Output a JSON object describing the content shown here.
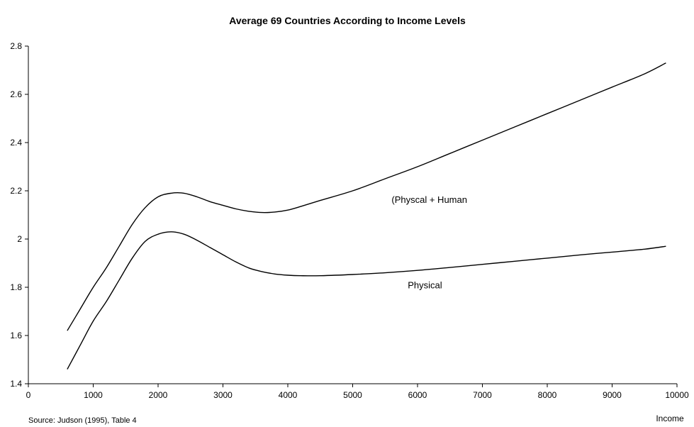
{
  "chart_data": {
    "type": "line",
    "title": "Average 69 Countries According to Income Levels",
    "xlabel": "Income",
    "ylabel": "",
    "xlim": [
      0,
      10000
    ],
    "ylim": [
      1.4,
      2.8
    ],
    "grid": false,
    "x_ticks": [
      "0",
      "1000",
      "2000",
      "3000",
      "4000",
      "5000",
      "6000",
      "7000",
      "8000",
      "9000",
      "10000"
    ],
    "y_ticks": [
      "1.4",
      "1.6",
      "1.8",
      "2",
      "2.2",
      "2.4",
      "2.6",
      "2.8"
    ],
    "series": [
      {
        "name": "(Physcal + Human",
        "color": "#000000",
        "x": [
          600,
          800,
          1000,
          1200,
          1400,
          1600,
          1800,
          2000,
          2200,
          2400,
          2600,
          2800,
          3000,
          3200,
          3400,
          3600,
          3800,
          4000,
          4200,
          4500,
          5000,
          5500,
          6000,
          6500,
          7000,
          7500,
          8000,
          8500,
          9000,
          9500,
          9830
        ],
        "values": [
          1.62,
          1.71,
          1.8,
          1.88,
          1.97,
          2.06,
          2.13,
          2.175,
          2.19,
          2.19,
          2.175,
          2.155,
          2.14,
          2.125,
          2.115,
          2.11,
          2.112,
          2.12,
          2.135,
          2.16,
          2.2,
          2.25,
          2.3,
          2.355,
          2.41,
          2.465,
          2.52,
          2.575,
          2.63,
          2.685,
          2.73
        ]
      },
      {
        "name": "Physical",
        "color": "#000000",
        "x": [
          600,
          800,
          1000,
          1200,
          1400,
          1600,
          1800,
          2000,
          2200,
          2400,
          2600,
          2800,
          3000,
          3200,
          3400,
          3600,
          3800,
          4000,
          4200,
          4500,
          5000,
          5500,
          6000,
          6500,
          7000,
          7500,
          8000,
          8500,
          9000,
          9500,
          9830
        ],
        "values": [
          1.46,
          1.56,
          1.66,
          1.74,
          1.83,
          1.92,
          1.99,
          2.02,
          2.03,
          2.02,
          1.995,
          1.965,
          1.935,
          1.905,
          1.88,
          1.865,
          1.855,
          1.85,
          1.848,
          1.848,
          1.853,
          1.86,
          1.87,
          1.882,
          1.895,
          1.908,
          1.921,
          1.934,
          1.946,
          1.958,
          1.97
        ]
      }
    ],
    "annotations": [
      {
        "text": "(Physcal + Human",
        "x": 5600,
        "y": 2.15
      },
      {
        "text": "Physical",
        "x": 5850,
        "y": 1.795
      }
    ],
    "source": "Source: Judson (1995), Table 4"
  }
}
